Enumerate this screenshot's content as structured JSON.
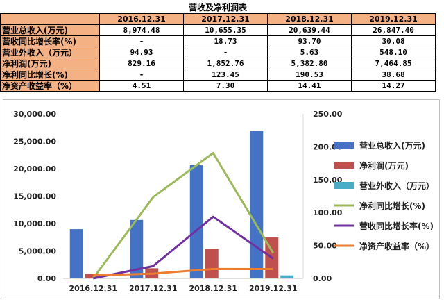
{
  "table": {
    "title": "营收及净利润表",
    "headers": [
      "",
      "2016.12.31",
      "2017.12.31",
      "2018.12.31",
      "2019.12.31"
    ],
    "rows": [
      {
        "label": "营业总收入(万元)",
        "values": [
          "8,974.48",
          "10,655.35",
          "20,639.44",
          "26,847.40"
        ]
      },
      {
        "label": "营收同比增长率(%)",
        "values": [
          "-",
          "18.73",
          "93.70",
          "30.08"
        ]
      },
      {
        "label": "营业外收入（万元）",
        "values": [
          "94.93",
          "-",
          "5.63",
          "548.10"
        ]
      },
      {
        "label": "净利润(万元)",
        "values": [
          "829.16",
          "1,852.76",
          "5,382.80",
          "7,464.85"
        ]
      },
      {
        "label": "净利同比增长(%)",
        "values": [
          "-",
          "123.45",
          "190.53",
          "38.68"
        ]
      },
      {
        "label": "净资产收益率（%）",
        "values": [
          "4.51",
          "7.30",
          "14.41",
          "14.27"
        ]
      }
    ]
  },
  "chart_data": {
    "type": "bar",
    "categories": [
      "2016.12.31",
      "2017.12.31",
      "2018.12.31",
      "2019.12.31"
    ],
    "y_left": {
      "range": [
        0,
        30000
      ],
      "ticks": [
        0,
        5000,
        10000,
        15000,
        20000,
        25000,
        30000
      ],
      "tick_labels": [
        "0.00",
        "5,000.00",
        "10,000.00",
        "15,000.00",
        "20,000.00",
        "25,000.00",
        "30,000.00"
      ]
    },
    "y_right": {
      "range": [
        0,
        250
      ],
      "ticks": [
        0,
        50,
        100,
        150,
        200,
        250
      ],
      "tick_labels": [
        "0.00",
        "50.00",
        "100.00",
        "150.00",
        "200.00",
        "250.00"
      ]
    },
    "grid": false,
    "legend_position": "right",
    "bar_series": [
      {
        "name": "营业总收入(万元)",
        "color": "#4472c4",
        "values": [
          8974.48,
          10655.35,
          20639.44,
          26847.4
        ]
      },
      {
        "name": "净利润(万元)",
        "color": "#c0504d",
        "values": [
          829.16,
          1852.76,
          5382.8,
          7464.85
        ]
      },
      {
        "name": "营业外收入（万元）",
        "color": "#4bacc6",
        "values": [
          94.93,
          0,
          5.63,
          548.1
        ]
      }
    ],
    "line_series": [
      {
        "name": "净利同比增长(%)",
        "color": "#9bbb59",
        "values": [
          0,
          123.45,
          190.53,
          38.68
        ]
      },
      {
        "name": "营收同比增长率(%)",
        "color": "#7030a0",
        "values": [
          0,
          18.73,
          93.7,
          30.08
        ]
      },
      {
        "name": "净资产收益率（%）",
        "color": "#ed7d31",
        "values": [
          4.51,
          7.3,
          14.41,
          14.27
        ]
      }
    ],
    "legend_order": [
      "营业总收入(万元)",
      "净利润(万元)",
      "营业外收入（万元）",
      "净利同比增长(%)",
      "营收同比增长率(%)",
      "净资产收益率（%）"
    ]
  }
}
